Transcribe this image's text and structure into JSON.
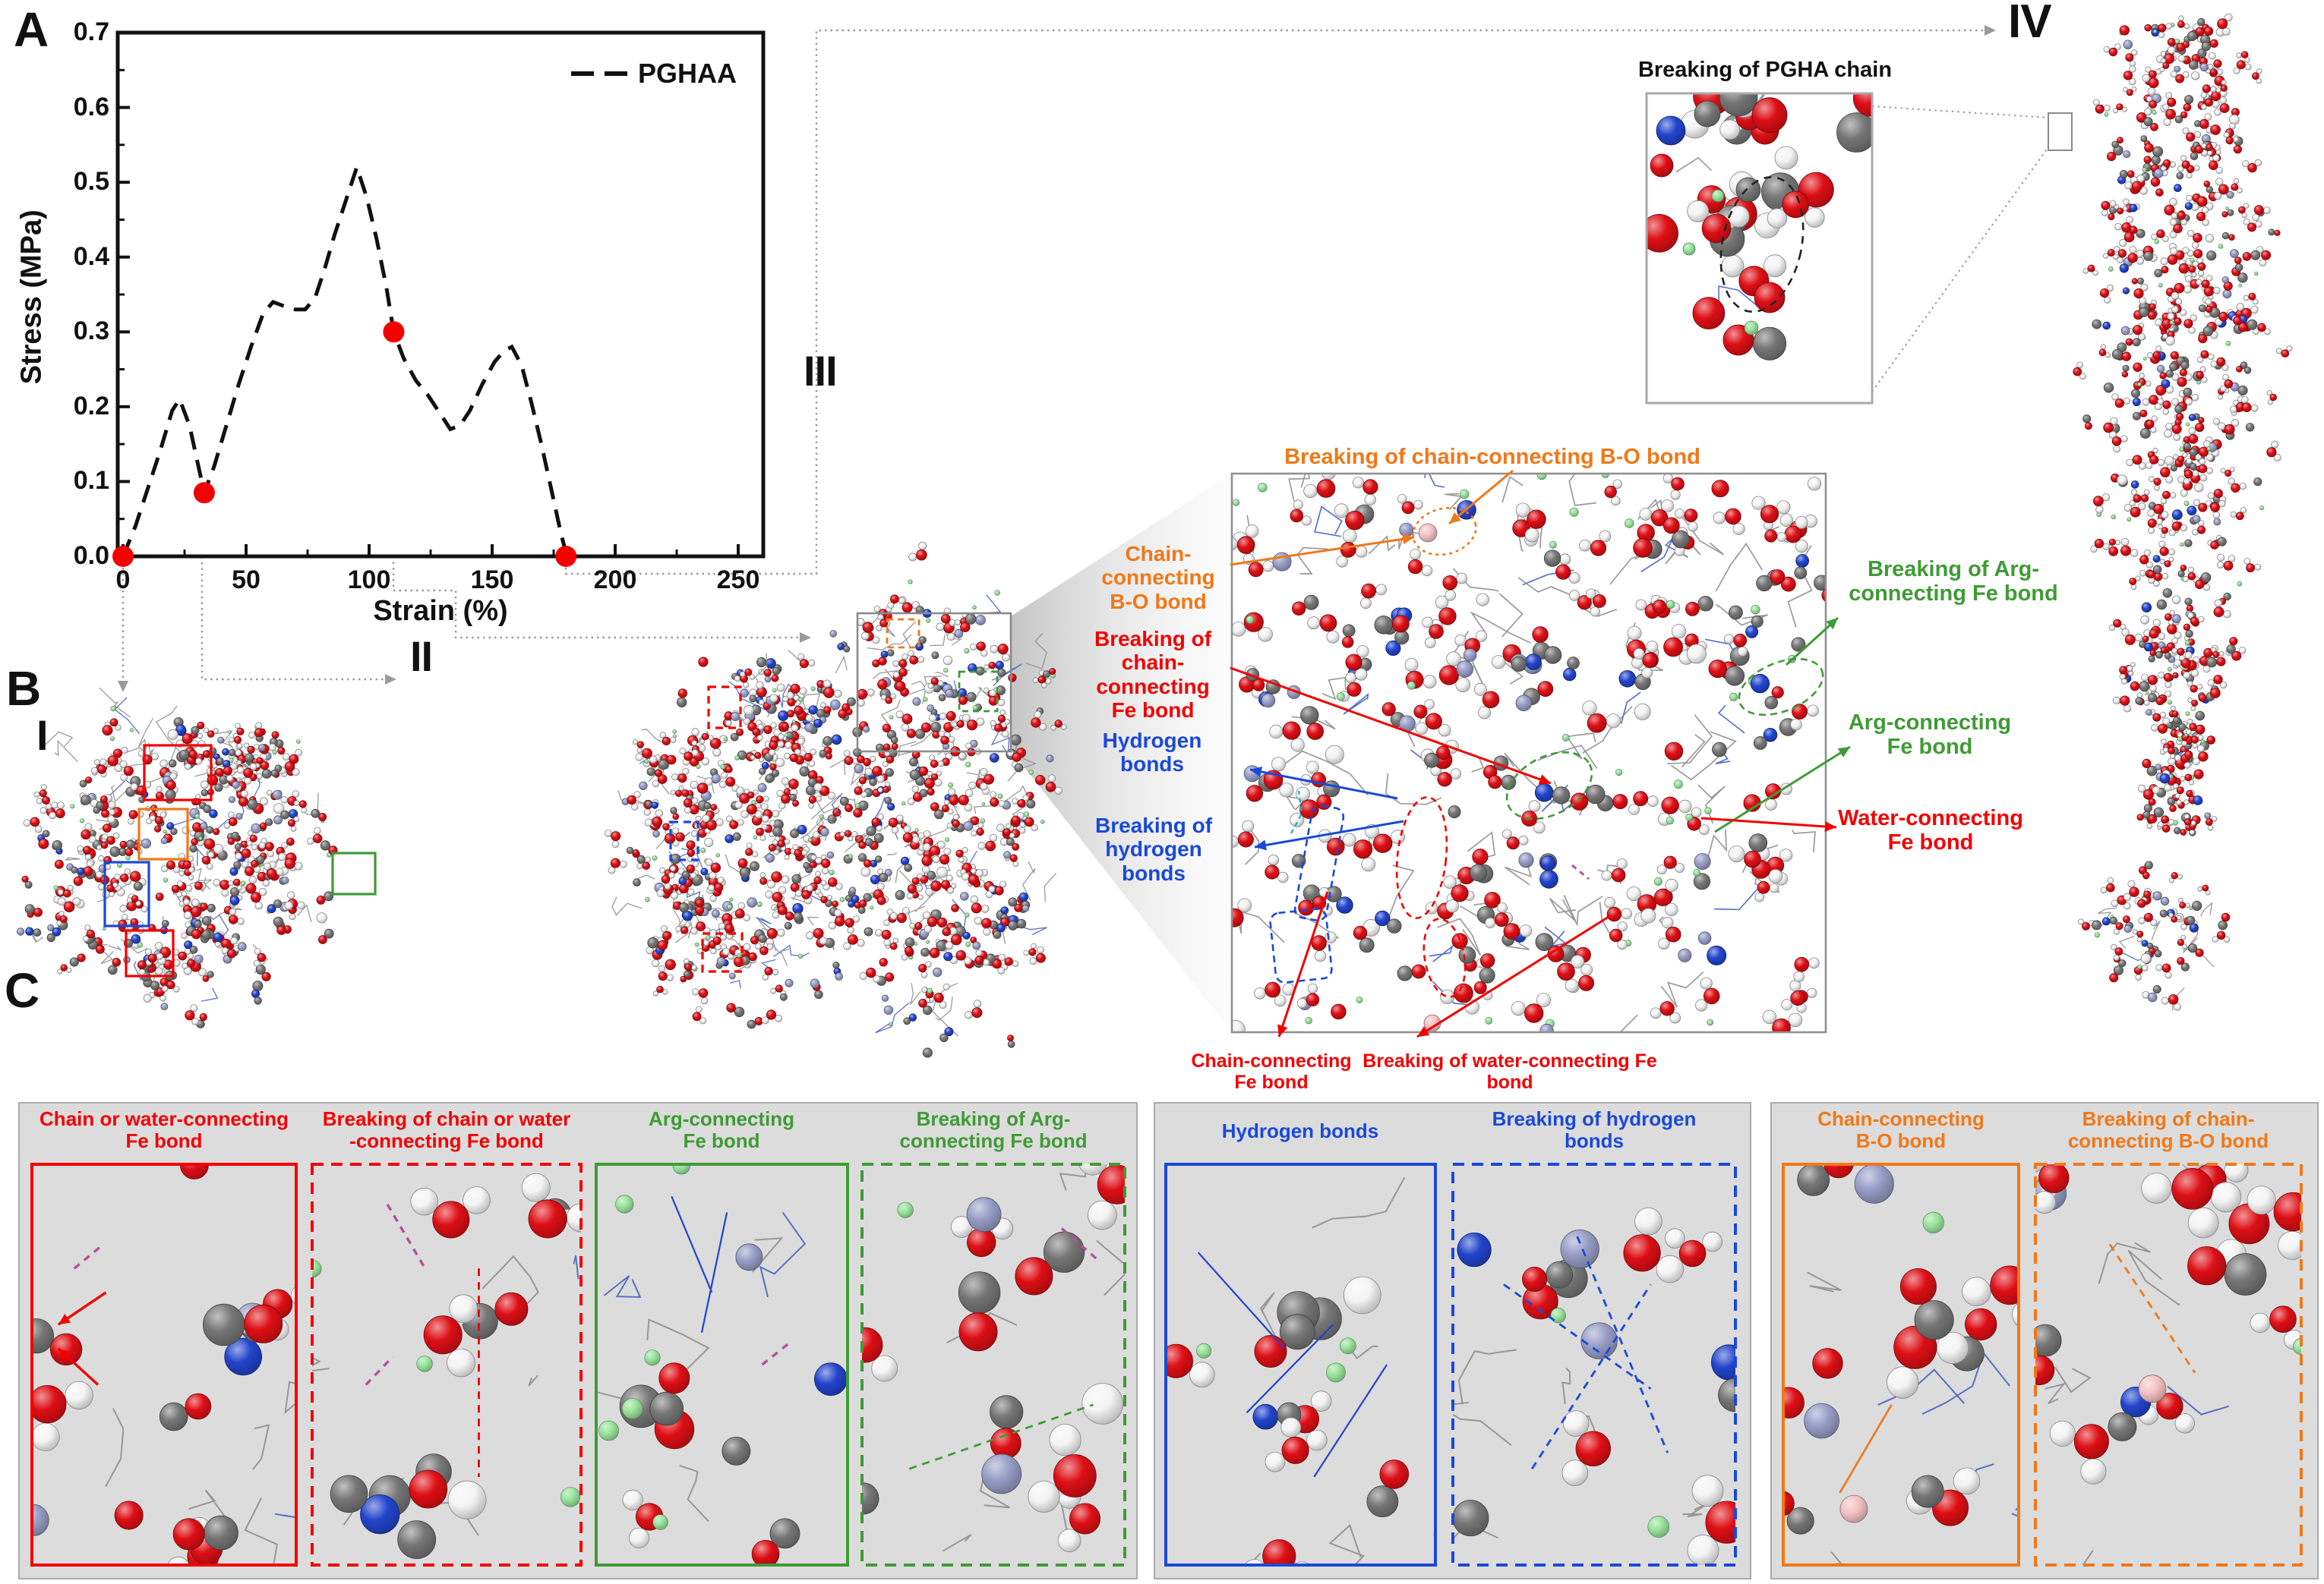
{
  "figure": {
    "panel_a_label": "A",
    "panel_b_label": "B",
    "panel_c_label": "C"
  },
  "chart_data": {
    "type": "line",
    "title": "",
    "xlabel": "Strain (%)",
    "ylabel": "Stress (MPa)",
    "xlim": [
      0,
      250
    ],
    "ylim": [
      0.0,
      0.7
    ],
    "xticks": [
      "0",
      "50",
      "100",
      "150",
      "200",
      "250"
    ],
    "yticks": [
      "0.0",
      "0.1",
      "0.2",
      "0.3",
      "0.4",
      "0.5",
      "0.6",
      "0.7"
    ],
    "grid": false,
    "legend": {
      "position": "top-right",
      "entries": [
        {
          "label": "PGHAA",
          "line": "dashed",
          "color": "#000000"
        }
      ]
    },
    "series": [
      {
        "name": "PGHAA",
        "style": "dashed",
        "color": "#000000",
        "x": [
          0,
          5,
          10,
          15,
          20,
          23,
          27,
          30,
          33,
          37,
          42,
          47,
          52,
          57,
          61,
          65,
          70,
          74,
          78,
          82,
          86,
          90,
          95,
          99,
          103,
          107,
          110,
          114,
          119,
          124,
          129,
          133,
          137,
          141,
          146,
          151,
          155,
          158,
          162,
          166,
          170,
          174,
          178,
          180
        ],
        "y": [
          0.0,
          0.04,
          0.09,
          0.14,
          0.195,
          0.21,
          0.175,
          0.13,
          0.085,
          0.12,
          0.175,
          0.23,
          0.28,
          0.325,
          0.34,
          0.335,
          0.33,
          0.33,
          0.345,
          0.385,
          0.43,
          0.47,
          0.52,
          0.48,
          0.425,
          0.36,
          0.3,
          0.265,
          0.235,
          0.215,
          0.19,
          0.17,
          0.175,
          0.195,
          0.23,
          0.26,
          0.275,
          0.28,
          0.255,
          0.205,
          0.15,
          0.09,
          0.03,
          0.005
        ]
      }
    ],
    "marked_points": {
      "color": "#f40000",
      "note": "red dots marking snapshots I-IV",
      "points": [
        [
          0,
          0.0
        ],
        [
          33,
          0.085
        ],
        [
          110,
          0.3
        ],
        [
          180,
          0.0
        ]
      ]
    }
  },
  "snapshots": [
    {
      "numeral": "I"
    },
    {
      "numeral": "II"
    },
    {
      "numeral": "III"
    },
    {
      "numeral": "IV"
    }
  ],
  "inset": {
    "title": "Breaking of PGHA chain"
  },
  "callouts": {
    "breaking_bo_top": "Breaking of chain-connecting B-O bond",
    "bo_left": "Chain-connecting\nB-O bond",
    "breaking_fe_chain_left": "Breaking of\nchain-connecting\nFe bond",
    "hydrogen_bonds_left": "Hydrogen\nbonds",
    "breaking_hydrogen_bonds_left": "Breaking of\nhydrogen bonds",
    "fe_chain_bottom": "Chain-connecting Fe bond",
    "breaking_fe_water_bottom": "Breaking of water-connecting Fe bond",
    "breaking_fe_arg_right": "Breaking of Arg-\nconnecting Fe bond",
    "fe_arg_right": "Arg-connecting\nFe bond",
    "fe_water_right": "Water-connecting\nFe bond"
  },
  "panel_c": {
    "groups": [
      {
        "items": [
          {
            "label": "Chain or water-connecting\nFe bond",
            "color": "red",
            "border": "solid"
          },
          {
            "label": "Breaking of chain or water\n-connecting Fe bond",
            "color": "red",
            "border": "dashed"
          },
          {
            "label": "Arg-connecting\nFe bond",
            "color": "green",
            "border": "solid"
          },
          {
            "label": "Breaking of Arg-\nconnecting Fe bond",
            "color": "green",
            "border": "dashed"
          }
        ]
      },
      {
        "items": [
          {
            "label": "Hydrogen bonds",
            "color": "blue",
            "border": "solid"
          },
          {
            "label": "Breaking of hydrogen\nbonds",
            "color": "blue",
            "border": "dashed"
          }
        ]
      },
      {
        "items": [
          {
            "label": "Chain-connecting\nB-O bond",
            "color": "orange",
            "border": "solid"
          },
          {
            "label": "Breaking of chain-\nconnecting B-O bond",
            "color": "orange",
            "border": "dashed"
          }
        ]
      }
    ]
  },
  "colors": {
    "red": "#f20000",
    "green": "#3f9b35",
    "blue": "#1a49d8",
    "orange": "#f07818",
    "marker_point": "#f40000",
    "panel_bg": "#dcdcdc",
    "atoms": {
      "oxygen": "#dd0f15",
      "carbon": "#767676",
      "hydrogen": "#f4f4f4",
      "nitrogen": "#2244cc",
      "ion_green": "#98e39c",
      "ion_lavender": "#979dc6",
      "boron_pink": "#f4c2c4"
    }
  }
}
